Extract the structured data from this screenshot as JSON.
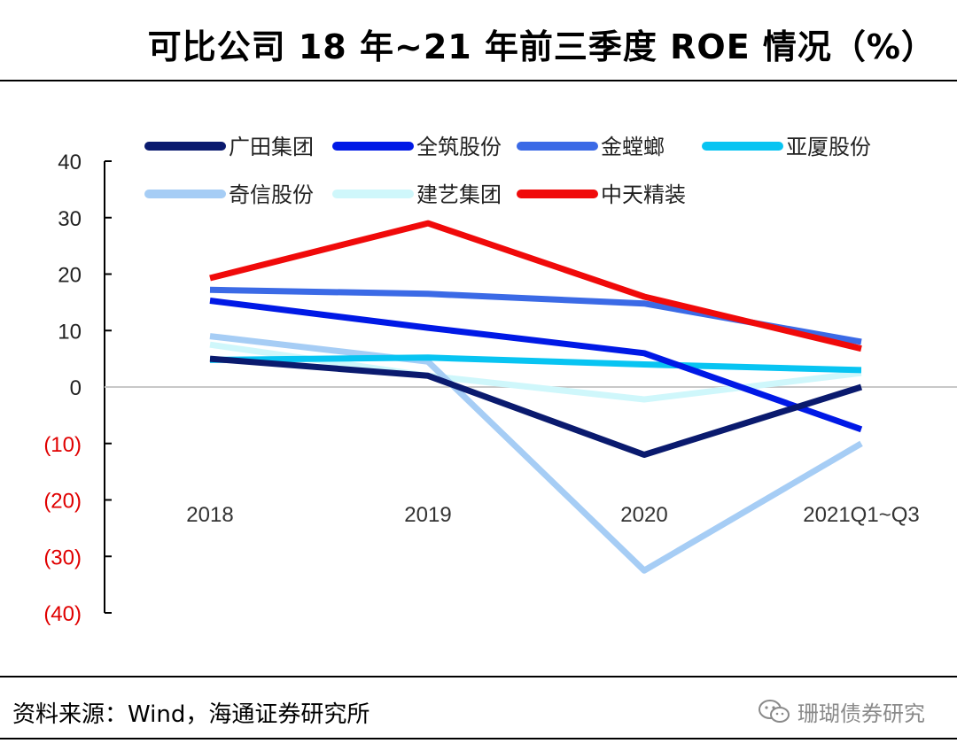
{
  "title": "可比公司 18 年~21 年前三季度 ROE 情况（%）",
  "source": "资料来源：Wind，海通证券研究所",
  "watermark": "珊瑚债券研究",
  "chart_data": {
    "type": "line",
    "title": "可比公司 18 年~21 年前三季度 ROE 情况（%）",
    "xlabel": "",
    "ylabel": "",
    "categories": [
      "2018",
      "2019",
      "2020",
      "2021Q1~Q3"
    ],
    "ylim": [
      -40,
      40
    ],
    "yticks": [
      40,
      30,
      20,
      10,
      0,
      -10,
      -20,
      -30,
      -40
    ],
    "ytick_labels": [
      "40",
      "30",
      "20",
      "10",
      "0",
      "(10)",
      "(20)",
      "(30)",
      "(40)"
    ],
    "legend_position": "top",
    "series": [
      {
        "name": "广田集团",
        "color": "#0a1a6e",
        "values": [
          5,
          2,
          -12,
          0
        ]
      },
      {
        "name": "全筑股份",
        "color": "#0019e6",
        "values": [
          15.3,
          10.5,
          6,
          -7.5
        ]
      },
      {
        "name": "金螳螂",
        "color": "#3b6ae6",
        "values": [
          17.2,
          16.5,
          14.8,
          8
        ]
      },
      {
        "name": "亚厦股份",
        "color": "#08c4f2",
        "values": [
          4.8,
          5.2,
          4,
          3
        ]
      },
      {
        "name": "奇信股份",
        "color": "#a6cdf5",
        "values": [
          9,
          4.5,
          -32.5,
          -10
        ]
      },
      {
        "name": "建艺集团",
        "color": "#cff7fb",
        "values": [
          7.5,
          2,
          -2.2,
          2.5
        ]
      },
      {
        "name": "中天精装",
        "color": "#f00a0a",
        "values": [
          19.3,
          29,
          16,
          6.8
        ]
      }
    ]
  }
}
